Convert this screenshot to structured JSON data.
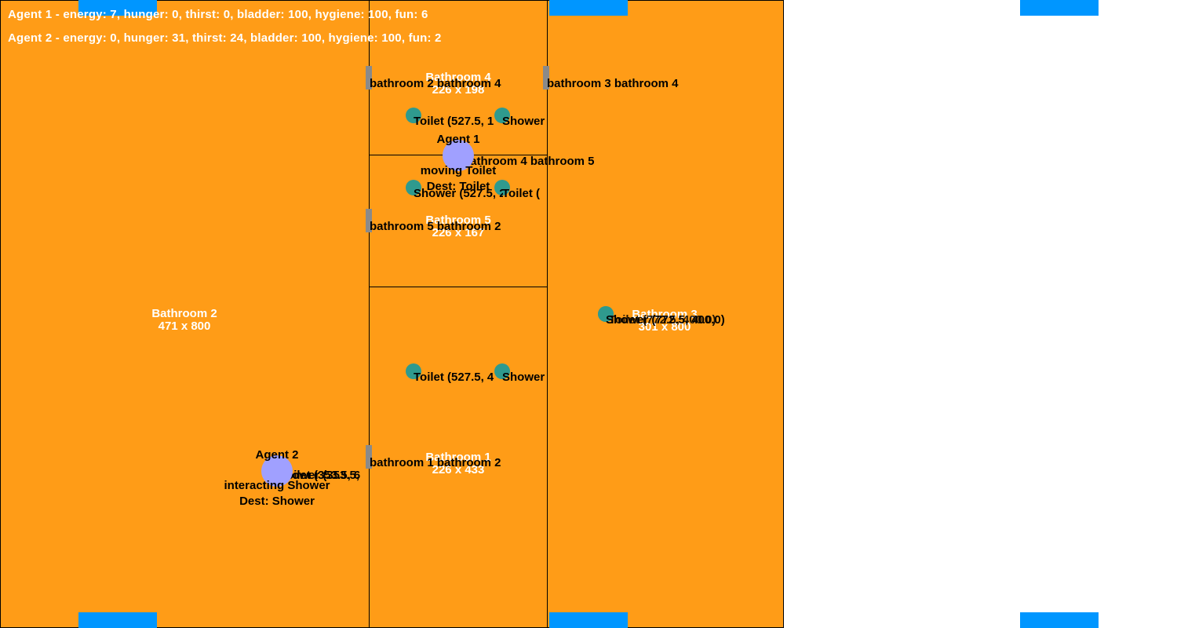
{
  "hud": {
    "agent1": "Agent 1 - energy: 7, hunger: 0, thirst: 0, bladder: 100, hygiene: 100, fun: 6",
    "agent2": "Agent 2 - energy: 0, hunger: 31, thirst: 24, bladder: 100, hygiene: 100, fun: 2"
  },
  "rooms": {
    "bathroom2": {
      "name": "Bathroom 2",
      "size": "471 x 800"
    },
    "bathroom4": {
      "name": "Bathroom 4",
      "size": "226 x 198"
    },
    "bathroom5": {
      "name": "Bathroom 5",
      "size": "226 x 167"
    },
    "bathroom1": {
      "name": "Bathroom 1",
      "size": "226 x 433"
    },
    "bathroom3": {
      "name": "Bathroom 3",
      "size": "301 x 800"
    }
  },
  "doors": {
    "d24": "bathroom 2 bathroom 4",
    "d34": "bathroom 3 bathroom 4",
    "d45": "bathroom 4 bathroom 5",
    "d52": "bathroom 5 bathroom 2",
    "d12": "bathroom 1 bathroom 2"
  },
  "objects": {
    "b4_toilet": "Toilet (527.5, 1",
    "b4_shower": "Shower",
    "b5_shower": "Shower (527.5, 2",
    "b5_toilet": "Toilet (",
    "b1_toilet": "Toilet (527.5, 4",
    "b1_shower": "Shower",
    "b3_shower": "Shower (772.5, 400.0)",
    "b3_toilet": "Toilet (772.5, 400.0)",
    "b2_shower": "Shower (353.5,",
    "b2_toilet": "Toilet (353.5, 6"
  },
  "agents": {
    "agent1": {
      "name": "Agent 1",
      "state": "moving Toilet",
      "dest": "Dest: Toilet"
    },
    "agent2": {
      "name": "Agent 2",
      "state": "interacting Shower",
      "dest": "Dest: Shower"
    }
  },
  "colors": {
    "room": "#ff9c17",
    "window": "#0096ff",
    "door": "#8a8a8a",
    "object": "#2f9a8e",
    "agent": "#a0a0ff"
  }
}
